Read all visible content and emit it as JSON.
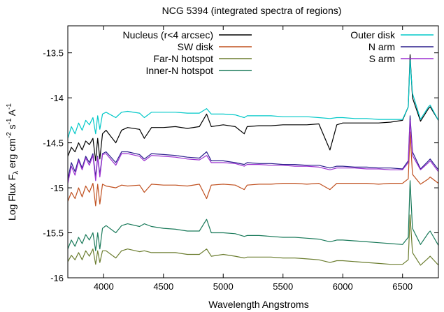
{
  "chart_data": {
    "type": "line",
    "title": "NCG 5394 (integrated spectra of regions)",
    "xlabel": "Wavelength Angstroms",
    "ylabel_parts": {
      "base": "Log Flux F",
      "sub": "λ",
      "units": " erg cm",
      "exp1": "-2",
      "mid": " s",
      "exp2": "-1",
      "tail": " A",
      "exp3": "-1"
    },
    "xlim": [
      3700,
      6800
    ],
    "ylim": [
      -16,
      -13.2
    ],
    "xticks": [
      {
        "value": 4000,
        "label": "4000"
      },
      {
        "value": 4500,
        "label": "4500"
      },
      {
        "value": 5000,
        "label": "5000"
      },
      {
        "value": 5500,
        "label": "5500"
      },
      {
        "value": 6000,
        "label": "6000"
      },
      {
        "value": 6500,
        "label": "6500"
      }
    ],
    "yticks": [
      {
        "value": -13.5,
        "label": "-13.5"
      },
      {
        "value": -14,
        "label": "-14"
      },
      {
        "value": -14.5,
        "label": "-14.5"
      },
      {
        "value": -15,
        "label": "-15"
      },
      {
        "value": -15.5,
        "label": "-15.5"
      },
      {
        "value": -16,
        "label": "-16"
      }
    ],
    "legend_left": [
      "Nucleus (r<4 arcsec)",
      "SW disk",
      "Far-N hotspot",
      "Inner-N hotspot"
    ],
    "legend_right": [
      "Outer disk",
      "N arm",
      "S arm"
    ],
    "series": [
      {
        "name": "Nucleus (r<4 arcsec)",
        "color": "#000000",
        "x": [
          3700,
          3730,
          3760,
          3790,
          3820,
          3850,
          3880,
          3910,
          3933,
          3950,
          3968,
          3990,
          4020,
          4101,
          4150,
          4200,
          4300,
          4340,
          4400,
          4500,
          4600,
          4700,
          4800,
          4861,
          4900,
          5000,
          5100,
          5176,
          5200,
          5300,
          5400,
          5500,
          5600,
          5700,
          5800,
          5893,
          5950,
          6000,
          6100,
          6200,
          6300,
          6400,
          6500,
          6548,
          6563,
          6583,
          6650,
          6717,
          6731,
          6800
        ],
        "y": [
          -14.65,
          -14.55,
          -14.6,
          -14.5,
          -14.58,
          -14.48,
          -14.52,
          -14.45,
          -14.7,
          -14.45,
          -14.68,
          -14.4,
          -14.36,
          -14.5,
          -14.36,
          -14.33,
          -14.35,
          -14.45,
          -14.33,
          -14.33,
          -14.32,
          -14.34,
          -14.32,
          -14.18,
          -14.32,
          -14.3,
          -14.32,
          -14.4,
          -14.32,
          -14.31,
          -14.31,
          -14.3,
          -14.3,
          -14.3,
          -14.29,
          -14.58,
          -14.3,
          -14.28,
          -14.28,
          -14.28,
          -14.28,
          -14.27,
          -14.25,
          -14.1,
          -13.52,
          -14.0,
          -14.26,
          -14.12,
          -14.1,
          -14.25
        ]
      },
      {
        "name": "SW disk",
        "color": "#c0501f",
        "x": [
          3700,
          3730,
          3760,
          3790,
          3820,
          3850,
          3880,
          3910,
          3933,
          3950,
          3968,
          3990,
          4020,
          4101,
          4150,
          4200,
          4300,
          4340,
          4400,
          4500,
          4600,
          4700,
          4800,
          4861,
          4900,
          5000,
          5100,
          5176,
          5200,
          5300,
          5400,
          5500,
          5600,
          5700,
          5800,
          5893,
          5950,
          6000,
          6100,
          6200,
          6300,
          6400,
          6500,
          6548,
          6563,
          6583,
          6650,
          6717,
          6731,
          6800
        ],
        "y": [
          -15.15,
          -15.05,
          -15.12,
          -15.0,
          -15.1,
          -14.98,
          -15.05,
          -14.95,
          -15.2,
          -14.96,
          -15.18,
          -14.96,
          -14.98,
          -15.0,
          -14.97,
          -14.98,
          -14.97,
          -15.05,
          -14.96,
          -14.97,
          -14.97,
          -14.98,
          -14.96,
          -15.12,
          -14.97,
          -14.96,
          -14.97,
          -15.02,
          -14.97,
          -14.96,
          -14.96,
          -14.95,
          -14.95,
          -14.96,
          -14.95,
          -15.02,
          -14.95,
          -14.95,
          -14.95,
          -14.95,
          -14.96,
          -14.95,
          -14.95,
          -14.9,
          -14.38,
          -14.85,
          -14.96,
          -14.9,
          -14.88,
          -14.95
        ]
      },
      {
        "name": "Far-N hotspot",
        "color": "#6b7d2f",
        "x": [
          3700,
          3730,
          3760,
          3790,
          3820,
          3850,
          3880,
          3910,
          3933,
          3950,
          3968,
          3990,
          4020,
          4101,
          4150,
          4200,
          4300,
          4340,
          4400,
          4500,
          4600,
          4700,
          4800,
          4861,
          4900,
          5000,
          5100,
          5176,
          5200,
          5300,
          5400,
          5500,
          5600,
          5700,
          5800,
          5893,
          5950,
          6000,
          6100,
          6200,
          6300,
          6400,
          6500,
          6548,
          6563,
          6583,
          6650,
          6717,
          6731,
          6800
        ],
        "y": [
          -15.82,
          -15.75,
          -15.8,
          -15.72,
          -15.8,
          -15.7,
          -15.76,
          -15.68,
          -15.85,
          -15.7,
          -15.83,
          -15.7,
          -15.7,
          -15.78,
          -15.7,
          -15.68,
          -15.71,
          -15.7,
          -15.72,
          -15.72,
          -15.72,
          -15.74,
          -15.74,
          -15.68,
          -15.76,
          -15.74,
          -15.76,
          -15.78,
          -15.77,
          -15.77,
          -15.77,
          -15.78,
          -15.78,
          -15.79,
          -15.8,
          -15.83,
          -15.81,
          -15.81,
          -15.82,
          -15.83,
          -15.84,
          -15.85,
          -15.85,
          -15.8,
          -15.3,
          -15.72,
          -15.86,
          -15.78,
          -15.76,
          -15.86
        ]
      },
      {
        "name": "Inner-N hotspot",
        "color": "#1a7a5a",
        "x": [
          3700,
          3730,
          3760,
          3790,
          3820,
          3850,
          3880,
          3910,
          3933,
          3950,
          3968,
          3990,
          4020,
          4101,
          4150,
          4200,
          4300,
          4340,
          4400,
          4500,
          4600,
          4700,
          4800,
          4861,
          4900,
          5000,
          5100,
          5176,
          5200,
          5300,
          5400,
          5500,
          5600,
          5700,
          5800,
          5893,
          5950,
          6000,
          6100,
          6200,
          6300,
          6400,
          6500,
          6548,
          6563,
          6583,
          6650,
          6717,
          6731,
          6800
        ],
        "y": [
          -15.68,
          -15.58,
          -15.65,
          -15.55,
          -15.62,
          -15.52,
          -15.58,
          -15.5,
          -15.7,
          -15.5,
          -15.68,
          -15.45,
          -15.42,
          -15.5,
          -15.42,
          -15.4,
          -15.43,
          -15.4,
          -15.43,
          -15.45,
          -15.46,
          -15.48,
          -15.48,
          -15.35,
          -15.5,
          -15.5,
          -15.51,
          -15.54,
          -15.53,
          -15.53,
          -15.54,
          -15.55,
          -15.55,
          -15.56,
          -15.57,
          -15.6,
          -15.58,
          -15.58,
          -15.59,
          -15.6,
          -15.61,
          -15.62,
          -15.63,
          -15.55,
          -14.92,
          -15.45,
          -15.63,
          -15.5,
          -15.48,
          -15.64
        ]
      },
      {
        "name": "Outer disk",
        "color": "#00c8c8",
        "x": [
          3700,
          3730,
          3760,
          3790,
          3820,
          3850,
          3880,
          3910,
          3933,
          3950,
          3968,
          3990,
          4020,
          4101,
          4150,
          4200,
          4300,
          4340,
          4400,
          4500,
          4600,
          4700,
          4800,
          4861,
          4900,
          5000,
          5100,
          5176,
          5200,
          5300,
          5400,
          5500,
          5600,
          5700,
          5800,
          5893,
          5950,
          6000,
          6100,
          6200,
          6300,
          6400,
          6500,
          6548,
          6563,
          6583,
          6650,
          6717,
          6731,
          6800
        ],
        "y": [
          -14.45,
          -14.32,
          -14.4,
          -14.28,
          -14.36,
          -14.25,
          -14.3,
          -14.22,
          -14.4,
          -14.2,
          -14.35,
          -14.18,
          -14.16,
          -14.22,
          -14.16,
          -14.15,
          -14.17,
          -14.22,
          -14.16,
          -14.16,
          -14.16,
          -14.17,
          -14.17,
          -14.12,
          -14.18,
          -14.18,
          -14.19,
          -14.22,
          -14.2,
          -14.2,
          -14.2,
          -14.21,
          -14.21,
          -14.21,
          -14.22,
          -14.23,
          -14.22,
          -14.22,
          -14.23,
          -14.23,
          -14.24,
          -14.24,
          -14.24,
          -14.1,
          -13.58,
          -13.95,
          -14.24,
          -14.1,
          -14.08,
          -14.25
        ]
      },
      {
        "name": "N arm",
        "color": "#2a1d8c",
        "x": [
          3700,
          3730,
          3760,
          3790,
          3820,
          3850,
          3880,
          3910,
          3933,
          3950,
          3968,
          3990,
          4020,
          4101,
          4150,
          4200,
          4300,
          4340,
          4400,
          4500,
          4600,
          4700,
          4800,
          4861,
          4900,
          5000,
          5100,
          5176,
          5200,
          5300,
          5400,
          5500,
          5600,
          5700,
          5800,
          5893,
          5950,
          6000,
          6100,
          6200,
          6300,
          6400,
          6500,
          6548,
          6563,
          6583,
          6650,
          6717,
          6731,
          6800
        ],
        "y": [
          -14.9,
          -14.72,
          -14.82,
          -14.68,
          -14.78,
          -14.65,
          -14.72,
          -14.62,
          -14.88,
          -14.65,
          -14.85,
          -14.62,
          -14.6,
          -14.72,
          -14.6,
          -14.6,
          -14.63,
          -14.68,
          -14.62,
          -14.63,
          -14.64,
          -14.66,
          -14.67,
          -14.6,
          -14.7,
          -14.7,
          -14.72,
          -14.74,
          -14.72,
          -14.73,
          -14.73,
          -14.74,
          -14.74,
          -14.75,
          -14.75,
          -14.78,
          -14.76,
          -14.76,
          -14.77,
          -14.77,
          -14.78,
          -14.78,
          -14.79,
          -14.7,
          -14.2,
          -14.6,
          -14.79,
          -14.7,
          -14.68,
          -14.8
        ]
      },
      {
        "name": "S arm",
        "color": "#9b2fd0",
        "x": [
          3700,
          3730,
          3760,
          3790,
          3820,
          3850,
          3880,
          3910,
          3933,
          3950,
          3968,
          3990,
          4020,
          4101,
          4150,
          4200,
          4300,
          4340,
          4400,
          4500,
          4600,
          4700,
          4800,
          4861,
          4900,
          5000,
          5100,
          5176,
          5200,
          5300,
          5400,
          5500,
          5600,
          5700,
          5800,
          5893,
          5950,
          6000,
          6100,
          6200,
          6300,
          6400,
          6500,
          6548,
          6563,
          6583,
          6650,
          6717,
          6731,
          6800
        ],
        "y": [
          -14.95,
          -14.76,
          -14.86,
          -14.7,
          -14.8,
          -14.67,
          -14.75,
          -14.64,
          -14.92,
          -14.66,
          -14.88,
          -14.63,
          -14.62,
          -14.75,
          -14.62,
          -14.62,
          -14.65,
          -14.7,
          -14.64,
          -14.65,
          -14.66,
          -14.68,
          -14.69,
          -14.64,
          -14.72,
          -14.72,
          -14.73,
          -14.76,
          -14.74,
          -14.74,
          -14.75,
          -14.75,
          -14.76,
          -14.76,
          -14.77,
          -14.8,
          -14.78,
          -14.78,
          -14.78,
          -14.79,
          -14.79,
          -14.8,
          -14.8,
          -14.72,
          -14.25,
          -14.64,
          -14.8,
          -14.72,
          -14.7,
          -14.82
        ]
      }
    ]
  }
}
